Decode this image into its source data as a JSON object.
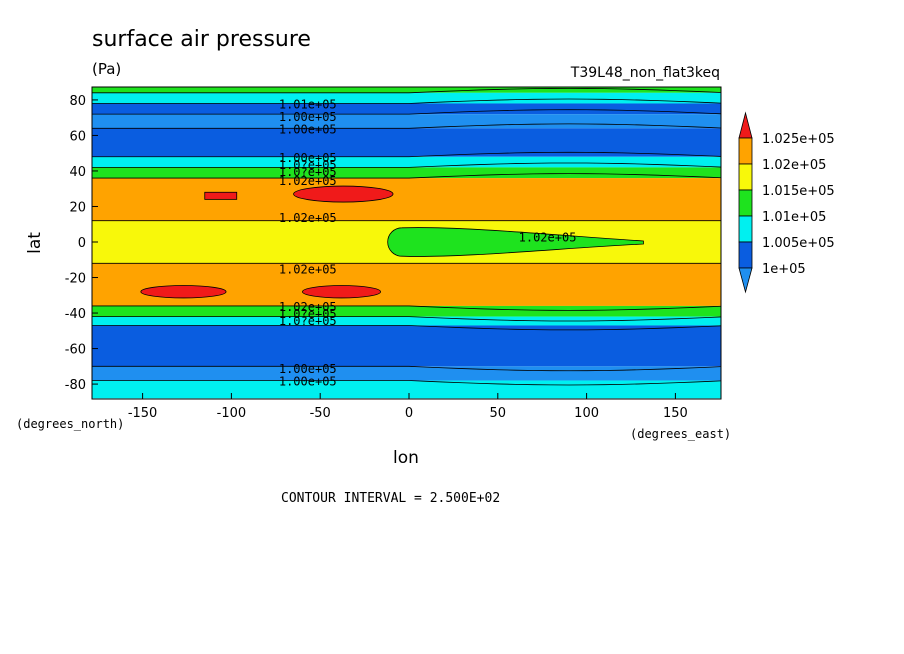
{
  "header": {
    "title": "surface air pressure",
    "units": "(Pa)",
    "run_id": "T39L48_non_flat3keq"
  },
  "footer": {
    "contour_interval": "CONTOUR INTERVAL = 2.500E+02"
  },
  "colors": {
    "lt_1e05": "#1f8ff0",
    "1e05_1005e05": "#0a5de0",
    "1005e05_101e05": "#00f0f0",
    "101e05_1015e05": "#1ee31e",
    "1015e05_102e05": "#f8f80a",
    "102e05_1025e05": "#ffa300",
    "gt_1025e05": "#f01a1a"
  },
  "chart_data": {
    "type": "heatmap",
    "subtype": "filled contour",
    "title": "surface air pressure",
    "units": "(Pa)",
    "xlabel": "lon",
    "ylabel": "lat",
    "x_unit_label": "(degrees_east)",
    "y_unit_label": "(degrees_north)",
    "xlim": [
      -180,
      178
    ],
    "ylim": [
      -88,
      88
    ],
    "x_ticks": [
      -150,
      -100,
      -50,
      0,
      50,
      100,
      150
    ],
    "x_tick_labels": [
      "-150",
      "-100",
      "-50",
      "0",
      "50",
      "100",
      "150"
    ],
    "y_ticks": [
      -80,
      -60,
      -40,
      -20,
      0,
      20,
      40,
      60,
      80
    ],
    "y_tick_labels": [
      "-80",
      "-60",
      "-40",
      "-20",
      "0",
      "20",
      "40",
      "60",
      "80"
    ],
    "contour_interval": 250,
    "colorbar": {
      "levels": [
        100000,
        100500,
        101000,
        101500,
        102000,
        102500
      ],
      "labels": [
        "1e+05",
        "1.005e+05",
        "1.01e+05",
        "1.015e+05",
        "1.02e+05",
        "1.025e+05"
      ],
      "colors": [
        "#1f8ff0",
        "#0a5de0",
        "#00f0f0",
        "#1ee31e",
        "#f8f80a",
        "#ffa300",
        "#f01a1a"
      ]
    },
    "bands": [
      {
        "lat": [
          84,
          88
        ],
        "class": 3
      },
      {
        "lat": [
          78,
          84
        ],
        "class": 2
      },
      {
        "lat": [
          72,
          78
        ],
        "class": 1
      },
      {
        "lat": [
          64,
          72
        ],
        "class": 0
      },
      {
        "lat": [
          48,
          64
        ],
        "class": 1
      },
      {
        "lat": [
          42,
          48
        ],
        "class": 2
      },
      {
        "lat": [
          36,
          42
        ],
        "class": 3
      },
      {
        "lat": [
          12,
          36
        ],
        "class": 5
      },
      {
        "lat": [
          -12,
          12
        ],
        "class": 4
      },
      {
        "lat": [
          -36,
          -12
        ],
        "class": 5
      },
      {
        "lat": [
          -42,
          -36
        ],
        "class": 3
      },
      {
        "lat": [
          -47,
          -42
        ],
        "class": 2
      },
      {
        "lat": [
          -70,
          -47
        ],
        "class": 1
      },
      {
        "lat": [
          -78,
          -70
        ],
        "class": 0
      },
      {
        "lat": [
          -88,
          -78
        ],
        "class": 2
      }
    ],
    "features": [
      {
        "class": 6,
        "shape": "rect",
        "lon": [
          -115,
          -97
        ],
        "lat": [
          24,
          28
        ]
      },
      {
        "class": 6,
        "shape": "ellipse",
        "lon_center": -37,
        "lat_center": 27,
        "lon_radius": 28,
        "lat_radius": 4.5
      },
      {
        "class": 6,
        "shape": "ellipse",
        "lon_center": -127,
        "lat_center": -28,
        "lon_radius": 24,
        "lat_radius": 3.5
      },
      {
        "class": 6,
        "shape": "ellipse",
        "lon_center": -38,
        "lat_center": -28,
        "lon_radius": 22,
        "lat_radius": 3.5
      },
      {
        "class": 3,
        "shape": "tongue",
        "lon": [
          -12,
          132
        ],
        "lat_center": 0,
        "lat_radius": 8
      }
    ],
    "contour_labels": [
      {
        "text": "1.01e+05",
        "lon": -57,
        "lat": 78
      },
      {
        "text": "1.00e+05",
        "lon": -57,
        "lat": 71
      },
      {
        "text": "1.00e+05",
        "lon": -57,
        "lat": 64
      },
      {
        "text": "1.00e+05",
        "lon": -57,
        "lat": 48
      },
      {
        "text": "1.0?e+05",
        "lon": -57,
        "lat": 44
      },
      {
        "text": "1.0?e+05",
        "lon": -57,
        "lat": 40
      },
      {
        "text": "1.02e+05",
        "lon": -57,
        "lat": 35
      },
      {
        "text": "1.02e+05",
        "lon": -57,
        "lat": 14
      },
      {
        "text": "1.02e+05",
        "lon": 78,
        "lat": 3
      },
      {
        "text": "1.02e+05",
        "lon": -57,
        "lat": -15
      },
      {
        "text": "1.02e+05",
        "lon": -57,
        "lat": -36
      },
      {
        "text": "1.0?e+05",
        "lon": -57,
        "lat": -40
      },
      {
        "text": "1.0?e+05",
        "lon": -57,
        "lat": -44
      },
      {
        "text": "1.00e+05",
        "lon": -57,
        "lat": -71
      },
      {
        "text": "1.00e+05",
        "lon": -57,
        "lat": -78
      }
    ]
  }
}
